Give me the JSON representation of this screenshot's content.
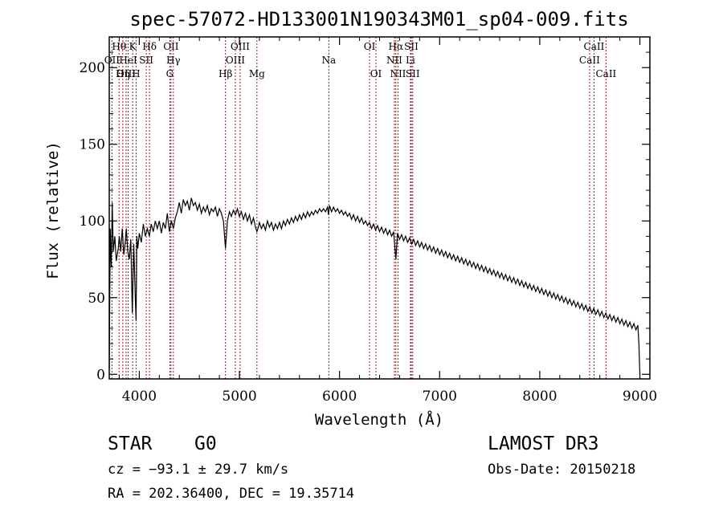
{
  "chart_data": {
    "type": "line",
    "title": "spec-57072-HD133001N190343M01_sp04-009.fits",
    "xlabel": "Wavelength (Å)",
    "ylabel": "Flux (relative)",
    "xlim": [
      3700,
      9100
    ],
    "ylim": [
      -3,
      220
    ],
    "xticks": [
      4000,
      5000,
      6000,
      7000,
      8000,
      9000
    ],
    "yticks": [
      0,
      50,
      100,
      150,
      200
    ],
    "xtick_labels": [
      "4000",
      "5000",
      "6000",
      "7000",
      "8000",
      "9000"
    ],
    "ytick_labels": [
      "0",
      "50",
      "100",
      "150",
      "200"
    ],
    "spectrum": [
      [
        3700,
        2
      ],
      [
        3710,
        95
      ],
      [
        3720,
        70
      ],
      [
        3730,
        112
      ],
      [
        3740,
        80
      ],
      [
        3755,
        90
      ],
      [
        3770,
        74
      ],
      [
        3790,
        82
      ],
      [
        3800,
        90
      ],
      [
        3815,
        80
      ],
      [
        3830,
        95
      ],
      [
        3845,
        78
      ],
      [
        3860,
        86
      ],
      [
        3870,
        95
      ],
      [
        3885,
        80
      ],
      [
        3900,
        75
      ],
      [
        3915,
        88
      ],
      [
        3930,
        40
      ],
      [
        3945,
        85
      ],
      [
        3960,
        50
      ],
      [
        3968,
        35
      ],
      [
        3975,
        90
      ],
      [
        3985,
        82
      ],
      [
        4000,
        92
      ],
      [
        4020,
        86
      ],
      [
        4040,
        98
      ],
      [
        4060,
        90
      ],
      [
        4080,
        95
      ],
      [
        4100,
        90
      ],
      [
        4120,
        98
      ],
      [
        4140,
        93
      ],
      [
        4160,
        100
      ],
      [
        4180,
        95
      ],
      [
        4200,
        100
      ],
      [
        4220,
        92
      ],
      [
        4240,
        99
      ],
      [
        4260,
        95
      ],
      [
        4280,
        105
      ],
      [
        4300,
        93
      ],
      [
        4320,
        100
      ],
      [
        4340,
        95
      ],
      [
        4360,
        102
      ],
      [
        4380,
        106
      ],
      [
        4400,
        112
      ],
      [
        4420,
        105
      ],
      [
        4440,
        114
      ],
      [
        4460,
        110
      ],
      [
        4480,
        113
      ],
      [
        4500,
        107
      ],
      [
        4520,
        115
      ],
      [
        4540,
        110
      ],
      [
        4560,
        112
      ],
      [
        4580,
        107
      ],
      [
        4600,
        111
      ],
      [
        4620,
        105
      ],
      [
        4640,
        109
      ],
      [
        4660,
        106
      ],
      [
        4680,
        110
      ],
      [
        4700,
        104
      ],
      [
        4720,
        108
      ],
      [
        4740,
        106
      ],
      [
        4760,
        109
      ],
      [
        4780,
        103
      ],
      [
        4800,
        108
      ],
      [
        4820,
        105
      ],
      [
        4840,
        100
      ],
      [
        4861,
        82
      ],
      [
        4880,
        100
      ],
      [
        4900,
        106
      ],
      [
        4920,
        103
      ],
      [
        4940,
        107
      ],
      [
        4960,
        104
      ],
      [
        4980,
        108
      ],
      [
        5000,
        103
      ],
      [
        5020,
        106
      ],
      [
        5040,
        101
      ],
      [
        5060,
        105
      ],
      [
        5080,
        100
      ],
      [
        5100,
        104
      ],
      [
        5120,
        98
      ],
      [
        5140,
        102
      ],
      [
        5160,
        96
      ],
      [
        5175,
        93
      ],
      [
        5190,
        96
      ],
      [
        5200,
        99
      ],
      [
        5220,
        95
      ],
      [
        5240,
        98
      ],
      [
        5260,
        94
      ],
      [
        5280,
        100
      ],
      [
        5300,
        96
      ],
      [
        5320,
        99
      ],
      [
        5340,
        94
      ],
      [
        5360,
        98
      ],
      [
        5380,
        95
      ],
      [
        5400,
        99
      ],
      [
        5420,
        95
      ],
      [
        5440,
        100
      ],
      [
        5460,
        97
      ],
      [
        5480,
        101
      ],
      [
        5500,
        98
      ],
      [
        5520,
        102
      ],
      [
        5540,
        99
      ],
      [
        5560,
        103
      ],
      [
        5580,
        100
      ],
      [
        5600,
        104
      ],
      [
        5620,
        101
      ],
      [
        5640,
        105
      ],
      [
        5660,
        102
      ],
      [
        5680,
        106
      ],
      [
        5700,
        103
      ],
      [
        5720,
        106
      ],
      [
        5740,
        104
      ],
      [
        5760,
        107
      ],
      [
        5780,
        105
      ],
      [
        5800,
        108
      ],
      [
        5820,
        106
      ],
      [
        5840,
        108
      ],
      [
        5860,
        106
      ],
      [
        5880,
        109
      ],
      [
        5890,
        104
      ],
      [
        5900,
        110
      ],
      [
        5920,
        106
      ],
      [
        5940,
        109
      ],
      [
        5960,
        106
      ],
      [
        5980,
        108
      ],
      [
        6000,
        105
      ],
      [
        6020,
        107
      ],
      [
        6040,
        104
      ],
      [
        6060,
        106
      ],
      [
        6080,
        103
      ],
      [
        6100,
        105
      ],
      [
        6120,
        101
      ],
      [
        6140,
        104
      ],
      [
        6160,
        100
      ],
      [
        6180,
        103
      ],
      [
        6200,
        99
      ],
      [
        6220,
        102
      ],
      [
        6240,
        98
      ],
      [
        6260,
        100
      ],
      [
        6280,
        97
      ],
      [
        6300,
        99
      ],
      [
        6320,
        95
      ],
      [
        6340,
        98
      ],
      [
        6360,
        94
      ],
      [
        6380,
        97
      ],
      [
        6400,
        93
      ],
      [
        6420,
        96
      ],
      [
        6440,
        92
      ],
      [
        6460,
        95
      ],
      [
        6480,
        91
      ],
      [
        6500,
        94
      ],
      [
        6520,
        90
      ],
      [
        6540,
        93
      ],
      [
        6563,
        75
      ],
      [
        6580,
        92
      ],
      [
        6600,
        88
      ],
      [
        6620,
        91
      ],
      [
        6640,
        87
      ],
      [
        6660,
        90
      ],
      [
        6680,
        86
      ],
      [
        6700,
        89
      ],
      [
        6720,
        85
      ],
      [
        6740,
        88
      ],
      [
        6760,
        84
      ],
      [
        6780,
        87
      ],
      [
        6800,
        83
      ],
      [
        6820,
        86
      ],
      [
        6840,
        82
      ],
      [
        6860,
        85
      ],
      [
        6880,
        81
      ],
      [
        6900,
        84
      ],
      [
        6920,
        80
      ],
      [
        6940,
        83
      ],
      [
        6960,
        79
      ],
      [
        6980,
        82
      ],
      [
        7000,
        78
      ],
      [
        7020,
        81
      ],
      [
        7040,
        77
      ],
      [
        7060,
        80
      ],
      [
        7080,
        76
      ],
      [
        7100,
        79
      ],
      [
        7120,
        75
      ],
      [
        7140,
        78
      ],
      [
        7160,
        74
      ],
      [
        7180,
        77
      ],
      [
        7200,
        73
      ],
      [
        7220,
        76
      ],
      [
        7240,
        72
      ],
      [
        7260,
        75
      ],
      [
        7280,
        71
      ],
      [
        7300,
        74
      ],
      [
        7320,
        70
      ],
      [
        7340,
        73
      ],
      [
        7360,
        69
      ],
      [
        7380,
        72
      ],
      [
        7400,
        68
      ],
      [
        7420,
        71
      ],
      [
        7440,
        67
      ],
      [
        7460,
        70
      ],
      [
        7480,
        66
      ],
      [
        7500,
        69
      ],
      [
        7520,
        65
      ],
      [
        7540,
        68
      ],
      [
        7560,
        64
      ],
      [
        7580,
        67
      ],
      [
        7600,
        63
      ],
      [
        7620,
        66
      ],
      [
        7640,
        62
      ],
      [
        7660,
        65
      ],
      [
        7680,
        61
      ],
      [
        7700,
        64
      ],
      [
        7720,
        60
      ],
      [
        7740,
        63
      ],
      [
        7760,
        59
      ],
      [
        7780,
        62
      ],
      [
        7800,
        58
      ],
      [
        7820,
        61
      ],
      [
        7840,
        57
      ],
      [
        7860,
        60
      ],
      [
        7880,
        56
      ],
      [
        7900,
        59
      ],
      [
        7920,
        55
      ],
      [
        7940,
        58
      ],
      [
        7960,
        54
      ],
      [
        7980,
        57
      ],
      [
        8000,
        53
      ],
      [
        8020,
        56
      ],
      [
        8040,
        52
      ],
      [
        8060,
        55
      ],
      [
        8080,
        51
      ],
      [
        8100,
        54
      ],
      [
        8120,
        50
      ],
      [
        8140,
        53
      ],
      [
        8160,
        49
      ],
      [
        8180,
        52
      ],
      [
        8200,
        48
      ],
      [
        8220,
        51
      ],
      [
        8240,
        47
      ],
      [
        8260,
        50
      ],
      [
        8280,
        46
      ],
      [
        8300,
        49
      ],
      [
        8320,
        45
      ],
      [
        8340,
        48
      ],
      [
        8360,
        44
      ],
      [
        8380,
        47
      ],
      [
        8400,
        43
      ],
      [
        8420,
        46
      ],
      [
        8440,
        42
      ],
      [
        8460,
        45
      ],
      [
        8480,
        41
      ],
      [
        8500,
        44
      ],
      [
        8520,
        40
      ],
      [
        8540,
        43
      ],
      [
        8560,
        39
      ],
      [
        8580,
        42
      ],
      [
        8600,
        38
      ],
      [
        8620,
        41
      ],
      [
        8640,
        37
      ],
      [
        8660,
        40
      ],
      [
        8680,
        36
      ],
      [
        8700,
        39
      ],
      [
        8720,
        35
      ],
      [
        8740,
        38
      ],
      [
        8760,
        34
      ],
      [
        8780,
        37
      ],
      [
        8800,
        33
      ],
      [
        8820,
        36
      ],
      [
        8840,
        32
      ],
      [
        8860,
        35
      ],
      [
        8880,
        31
      ],
      [
        8900,
        34
      ],
      [
        8920,
        30
      ],
      [
        8940,
        33
      ],
      [
        8960,
        29
      ],
      [
        8980,
        32
      ],
      [
        8990,
        20
      ],
      [
        9000,
        0
      ]
    ],
    "lines": [
      {
        "label": "Hθ",
        "wl": 3798,
        "row": 1
      },
      {
        "label": "OII",
        "wl": 3727,
        "row": 2
      },
      {
        "label": "OIII",
        "wl": 3869,
        "row": 3
      },
      {
        "label": "K",
        "wl": 3934,
        "row": 1
      },
      {
        "label": "HeI",
        "wl": 3889,
        "row": 2
      },
      {
        "label": "Hη",
        "wl": 3835,
        "row": 3
      },
      {
        "label": "Hδ",
        "wl": 4102,
        "row": 1
      },
      {
        "label": "SII",
        "wl": 4070,
        "row": 2
      },
      {
        "label": "H",
        "wl": 3968,
        "row": 3
      },
      {
        "label": "OII",
        "wl": 4317,
        "row": 1
      },
      {
        "label": "Hγ",
        "wl": 4340,
        "row": 2
      },
      {
        "label": "G",
        "wl": 4305,
        "row": 3
      },
      {
        "label": "OIII",
        "wl": 5007,
        "row": 1
      },
      {
        "label": "OIII",
        "wl": 4959,
        "row": 2
      },
      {
        "label": "Hβ",
        "wl": 4861,
        "row": 3
      },
      {
        "label": "Mg",
        "wl": 5175,
        "row": 3
      },
      {
        "label": "Na",
        "wl": 5893,
        "row": 2
      },
      {
        "label": "OI",
        "wl": 6300,
        "row": 1
      },
      {
        "label": "OI",
        "wl": 6364,
        "row": 3
      },
      {
        "label": "Hα",
        "wl": 6563,
        "row": 1
      },
      {
        "label": "SII",
        "wl": 6717,
        "row": 1
      },
      {
        "label": "NII",
        "wl": 6548,
        "row": 2
      },
      {
        "label": "Li",
        "wl": 6708,
        "row": 2
      },
      {
        "label": "NII",
        "wl": 6584,
        "row": 3
      },
      {
        "label": "SII",
        "wl": 6731,
        "row": 3
      },
      {
        "label": "CaII",
        "wl": 8542,
        "row": 1
      },
      {
        "label": "CaII",
        "wl": 8498,
        "row": 2
      },
      {
        "label": "CaII",
        "wl": 8662,
        "row": 3
      }
    ]
  },
  "info": {
    "object_type": "STAR",
    "subclass": "G0",
    "survey": "LAMOST DR3",
    "cz": "cz = −93.1 ± 29.7 km/s",
    "obs_date": "Obs-Date: 20150218",
    "coords": "RA = 202.36400, DEC =  19.35714"
  },
  "colors": {
    "marker_line": "#a0191e",
    "spectrum": "#000000",
    "axes": "#000000"
  }
}
